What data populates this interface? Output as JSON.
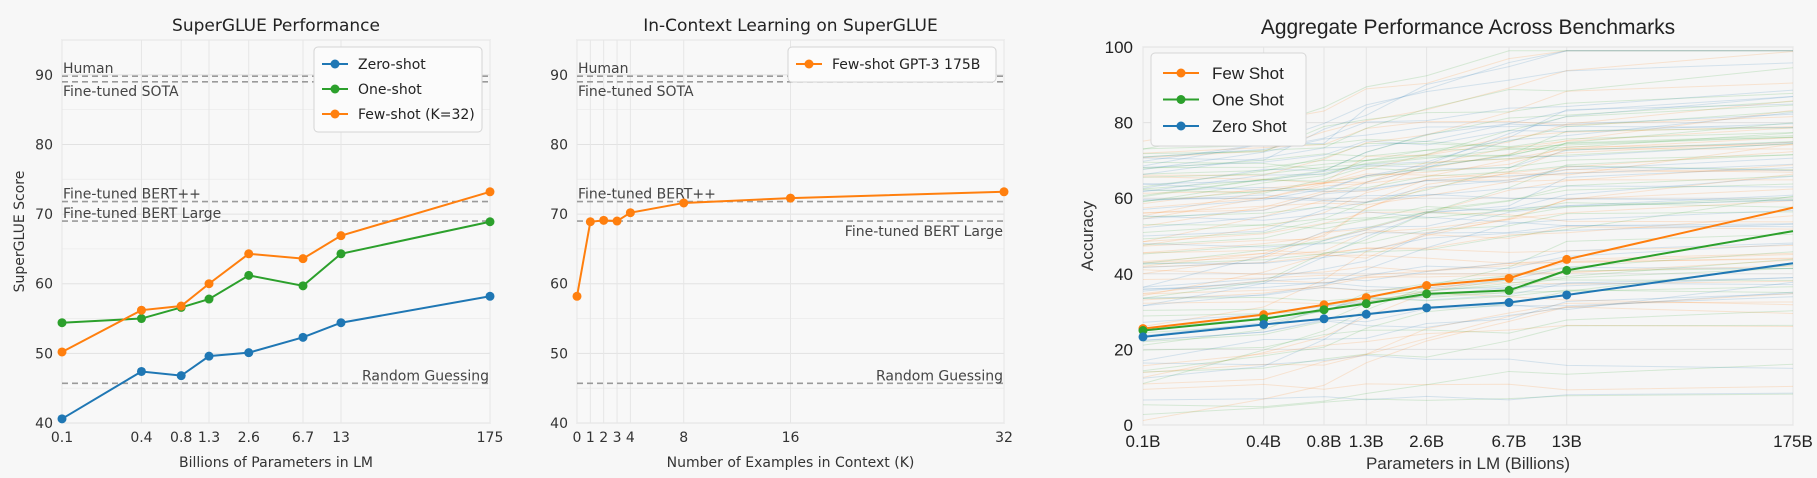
{
  "chart_data": [
    {
      "type": "line",
      "title": "SuperGLUE Performance",
      "xlabel": "Billions of Parameters in LM",
      "ylabel": "SuperGLUE Score",
      "categories": [
        "0.1",
        "0.4",
        "0.8",
        "1.3",
        "2.6",
        "6.7",
        "13",
        "175"
      ],
      "ylim": [
        40,
        95
      ],
      "yticks": [
        40,
        50,
        60,
        70,
        80,
        90
      ],
      "grid": true,
      "legend": "top-right",
      "series": [
        {
          "name": "Zero-shot",
          "color": "#1f77b4",
          "values": [
            40.6,
            47.4,
            46.8,
            49.6,
            50.1,
            52.3,
            54.4,
            58.2
          ]
        },
        {
          "name": "One-shot",
          "color": "#2ca02c",
          "values": [
            54.4,
            55.0,
            56.6,
            57.8,
            61.2,
            59.7,
            64.3,
            68.9
          ]
        },
        {
          "name": "Few-shot (K=32)",
          "color": "#ff7f0e",
          "values": [
            50.2,
            56.2,
            56.8,
            60.0,
            64.3,
            63.6,
            66.9,
            73.2
          ]
        }
      ],
      "reference_lines": [
        {
          "label": "Human",
          "value": 89.8,
          "label_pos": "left-above"
        },
        {
          "label": "Fine-tuned SOTA",
          "value": 89.0,
          "label_pos": "left-below"
        },
        {
          "label": "Fine-tuned BERT++",
          "value": 71.8,
          "label_pos": "left-above"
        },
        {
          "label": "Fine-tuned BERT Large",
          "value": 69.0,
          "label_pos": "left-above"
        },
        {
          "label": "Random Guessing",
          "value": 45.7,
          "label_pos": "right-above"
        }
      ]
    },
    {
      "type": "line",
      "title": "In-Context Learning on SuperGLUE",
      "xlabel": "Number of Examples in Context (K)",
      "ylabel": "",
      "x": [
        0,
        1,
        2,
        3,
        4,
        8,
        16,
        32
      ],
      "xlim": [
        0,
        32
      ],
      "ylim": [
        40,
        95
      ],
      "yticks": [
        40,
        50,
        60,
        70,
        80,
        90
      ],
      "grid": true,
      "legend": "top-right",
      "series": [
        {
          "name": "Few-shot GPT-3 175B",
          "color": "#ff7f0e",
          "values": [
            58.2,
            68.9,
            69.1,
            69.0,
            70.2,
            71.6,
            72.3,
            73.2
          ]
        }
      ],
      "reference_lines": [
        {
          "label": "Human",
          "value": 89.8,
          "label_pos": "left-above"
        },
        {
          "label": "Fine-tuned SOTA",
          "value": 89.0,
          "label_pos": "left-below"
        },
        {
          "label": "Fine-tuned BERT++",
          "value": 71.8,
          "label_pos": "left-above"
        },
        {
          "label": "Fine-tuned BERT Large",
          "value": 69.0,
          "label_pos": "right-below"
        },
        {
          "label": "Random Guessing",
          "value": 45.7,
          "label_pos": "right-above"
        }
      ]
    },
    {
      "type": "line",
      "title": "Aggregate Performance Across Benchmarks",
      "xlabel": "Parameters in LM (Billions)",
      "ylabel": "Accuracy",
      "categories": [
        "0.1B",
        "0.4B",
        "0.8B",
        "1.3B",
        "2.6B",
        "6.7B",
        "13B",
        "175B"
      ],
      "ylim": [
        0,
        100
      ],
      "yticks": [
        0,
        20,
        40,
        60,
        80,
        100
      ],
      "grid": true,
      "legend": "top-left",
      "series": [
        {
          "name": "Few Shot",
          "color": "#ff7f0e",
          "values": [
            25.5,
            29.2,
            31.8,
            33.7,
            36.9,
            38.8,
            43.8,
            57.5
          ]
        },
        {
          "name": "One Shot",
          "color": "#2ca02c",
          "values": [
            25.0,
            28.1,
            30.5,
            32.1,
            34.7,
            35.6,
            40.9,
            51.3
          ]
        },
        {
          "name": "Zero Shot",
          "color": "#1f77b4",
          "values": [
            23.3,
            26.6,
            28.1,
            29.3,
            31.0,
            32.4,
            34.4,
            42.8
          ]
        }
      ],
      "background_lines": "faint per-benchmark traces for each series"
    }
  ]
}
